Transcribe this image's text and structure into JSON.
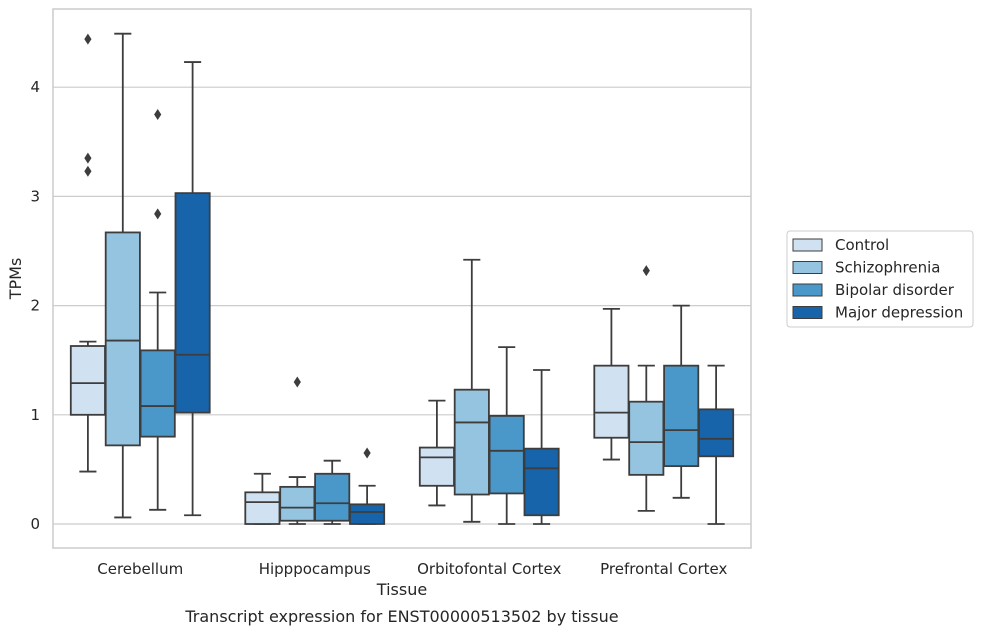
{
  "chart_data": {
    "type": "boxplot",
    "title": "",
    "caption": "Transcript expression for ENST00000513502 by tissue",
    "xlabel": "Tissue",
    "ylabel": "TPMs",
    "ylim": [
      -0.22,
      4.7
    ],
    "yticks": [
      0,
      1,
      2,
      3,
      4
    ],
    "grid": "horizontal",
    "legend_position": "right",
    "categories": [
      "Cerebellum",
      "Hipppocampus",
      "Orbitofontal Cortex",
      "Prefrontal Cortex"
    ],
    "series": [
      {
        "name": "Control",
        "color": "#d0e1f2",
        "boxes": [
          {
            "whislo": 0.48,
            "q1": 1.0,
            "med": 1.29,
            "q3": 1.63,
            "whishi": 1.67,
            "fliers": [
              4.44,
              3.35,
              3.23
            ]
          },
          {
            "whislo": 0.0,
            "q1": 0.0,
            "med": 0.2,
            "q3": 0.29,
            "whishi": 0.46,
            "fliers": []
          },
          {
            "whislo": 0.17,
            "q1": 0.35,
            "med": 0.61,
            "q3": 0.7,
            "whishi": 1.13,
            "fliers": []
          },
          {
            "whislo": 0.59,
            "q1": 0.79,
            "med": 1.02,
            "q3": 1.45,
            "whishi": 1.97,
            "fliers": []
          }
        ]
      },
      {
        "name": "Schizophrenia",
        "color": "#94c4df",
        "boxes": [
          {
            "whislo": 0.06,
            "q1": 0.72,
            "med": 1.68,
            "q3": 2.67,
            "whishi": 4.49,
            "fliers": []
          },
          {
            "whislo": 0.0,
            "q1": 0.03,
            "med": 0.15,
            "q3": 0.34,
            "whishi": 0.43,
            "fliers": [
              1.3
            ]
          },
          {
            "whislo": 0.02,
            "q1": 0.27,
            "med": 0.93,
            "q3": 1.23,
            "whishi": 2.42,
            "fliers": []
          },
          {
            "whislo": 0.12,
            "q1": 0.45,
            "med": 0.75,
            "q3": 1.12,
            "whishi": 1.45,
            "fliers": [
              2.32
            ]
          }
        ]
      },
      {
        "name": "Bipolar disorder",
        "color": "#4a98c9",
        "boxes": [
          {
            "whislo": 0.13,
            "q1": 0.8,
            "med": 1.08,
            "q3": 1.59,
            "whishi": 2.12,
            "fliers": [
              3.75,
              2.84
            ]
          },
          {
            "whislo": 0.0,
            "q1": 0.03,
            "med": 0.19,
            "q3": 0.46,
            "whishi": 0.58,
            "fliers": []
          },
          {
            "whislo": 0.0,
            "q1": 0.28,
            "med": 0.67,
            "q3": 0.99,
            "whishi": 1.62,
            "fliers": []
          },
          {
            "whislo": 0.24,
            "q1": 0.53,
            "med": 0.86,
            "q3": 1.45,
            "whishi": 2.0,
            "fliers": []
          }
        ]
      },
      {
        "name": "Major depression",
        "color": "#1764ab",
        "boxes": [
          {
            "whislo": 0.08,
            "q1": 1.02,
            "med": 1.55,
            "q3": 3.03,
            "whishi": 4.23,
            "fliers": []
          },
          {
            "whislo": 0.0,
            "q1": 0.0,
            "med": 0.11,
            "q3": 0.18,
            "whishi": 0.35,
            "fliers": [
              0.65
            ]
          },
          {
            "whislo": 0.0,
            "q1": 0.08,
            "med": 0.51,
            "q3": 0.69,
            "whishi": 1.41,
            "fliers": []
          },
          {
            "whislo": 0.0,
            "q1": 0.62,
            "med": 0.78,
            "q3": 1.05,
            "whishi": 1.45,
            "fliers": []
          }
        ]
      }
    ]
  }
}
